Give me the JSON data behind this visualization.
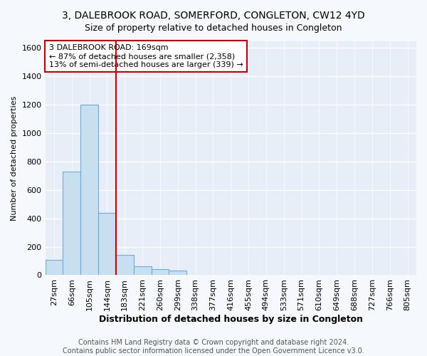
{
  "title1": "3, DALEBROOK ROAD, SOMERFORD, CONGLETON, CW12 4YD",
  "title2": "Size of property relative to detached houses in Congleton",
  "xlabel": "Distribution of detached houses by size in Congleton",
  "ylabel": "Number of detached properties",
  "categories": [
    "27sqm",
    "66sqm",
    "105sqm",
    "144sqm",
    "183sqm",
    "221sqm",
    "260sqm",
    "299sqm",
    "338sqm",
    "377sqm",
    "416sqm",
    "455sqm",
    "494sqm",
    "533sqm",
    "571sqm",
    "610sqm",
    "649sqm",
    "688sqm",
    "727sqm",
    "766sqm",
    "805sqm"
  ],
  "values": [
    110,
    730,
    1200,
    440,
    145,
    60,
    40,
    30,
    0,
    0,
    0,
    0,
    0,
    0,
    0,
    0,
    0,
    0,
    0,
    0,
    0
  ],
  "bar_color": "#c8dff0",
  "bar_edge_color": "#6aaed6",
  "vline_x_index": 4,
  "vline_color": "#cc0000",
  "annotation_text": "3 DALEBROOK ROAD: 169sqm\n← 87% of detached houses are smaller (2,358)\n13% of semi-detached houses are larger (339) →",
  "annotation_box_facecolor": "white",
  "annotation_box_edgecolor": "#cc0000",
  "ylim": [
    0,
    1650
  ],
  "yticks": [
    0,
    200,
    400,
    600,
    800,
    1000,
    1200,
    1400,
    1600
  ],
  "footer": "Contains HM Land Registry data © Crown copyright and database right 2024.\nContains public sector information licensed under the Open Government Licence v3.0.",
  "fig_facecolor": "#f5f8fc",
  "plot_facecolor": "#e8eef8",
  "grid_color": "#ffffff",
  "title1_fontsize": 10,
  "title2_fontsize": 9,
  "xlabel_fontsize": 9,
  "ylabel_fontsize": 8,
  "tick_fontsize": 8,
  "annotation_fontsize": 8,
  "footer_fontsize": 7
}
